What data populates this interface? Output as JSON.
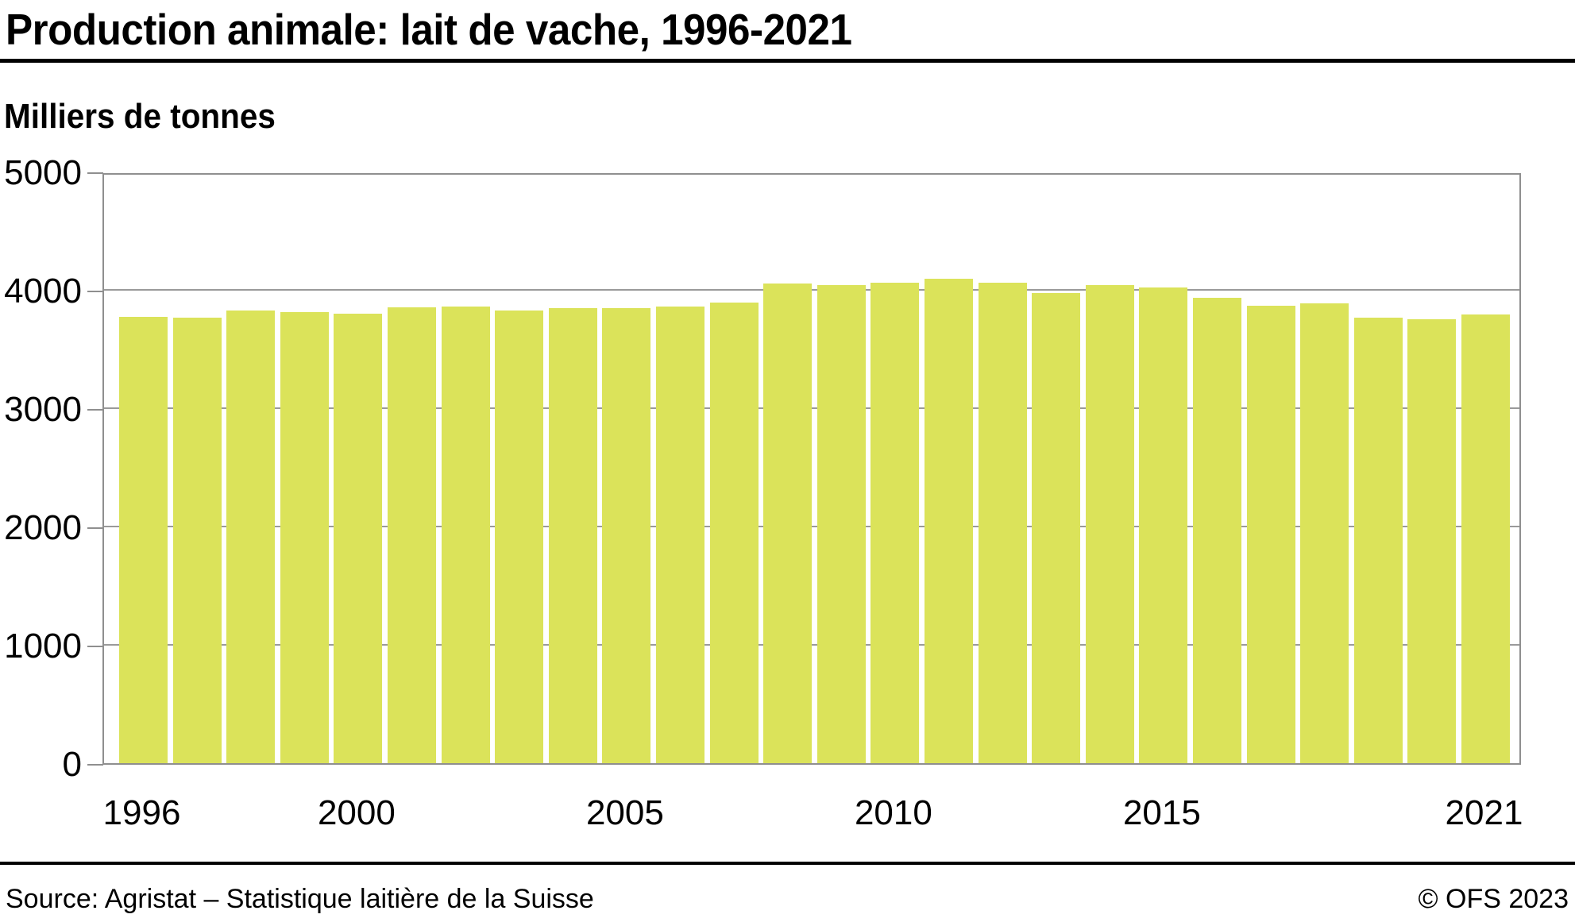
{
  "header": {
    "title": "Production animale: lait de vache, 1996-2021"
  },
  "chart": {
    "unit_label": "Milliers de tonnes"
  },
  "chart_data": {
    "type": "bar",
    "title": "Production animale: lait de vache, 1996-2021",
    "ylabel": "Milliers de tonnes",
    "xlabel": "",
    "categories": [
      1996,
      1997,
      1998,
      1999,
      2000,
      2001,
      2002,
      2003,
      2004,
      2005,
      2006,
      2007,
      2008,
      2009,
      2010,
      2011,
      2012,
      2013,
      2014,
      2015,
      2016,
      2017,
      2018,
      2019,
      2020,
      2021
    ],
    "values": [
      3790,
      3785,
      3845,
      3830,
      3820,
      3870,
      3880,
      3845,
      3865,
      3865,
      3880,
      3915,
      4075,
      4060,
      4080,
      4115,
      4085,
      3995,
      4065,
      4040,
      3955,
      3885,
      3905,
      3785,
      3770,
      3810
    ],
    "ylim": [
      0,
      5000
    ],
    "yticks": [
      0,
      1000,
      2000,
      3000,
      4000,
      5000
    ],
    "xtick_years": [
      1996,
      2000,
      2005,
      2010,
      2015,
      2021
    ],
    "xtick_labels": [
      "1996",
      "2000",
      "2005",
      "2010",
      "2015",
      "2021"
    ],
    "grid": true,
    "legend": false,
    "bar_color": "#dbe35a",
    "grid_color": "#9a9a9a",
    "axis_color": "#8f8f8f"
  },
  "footer": {
    "source": "Source: Agristat – Statistique laitière de la Suisse",
    "copyright": "© OFS 2023"
  }
}
